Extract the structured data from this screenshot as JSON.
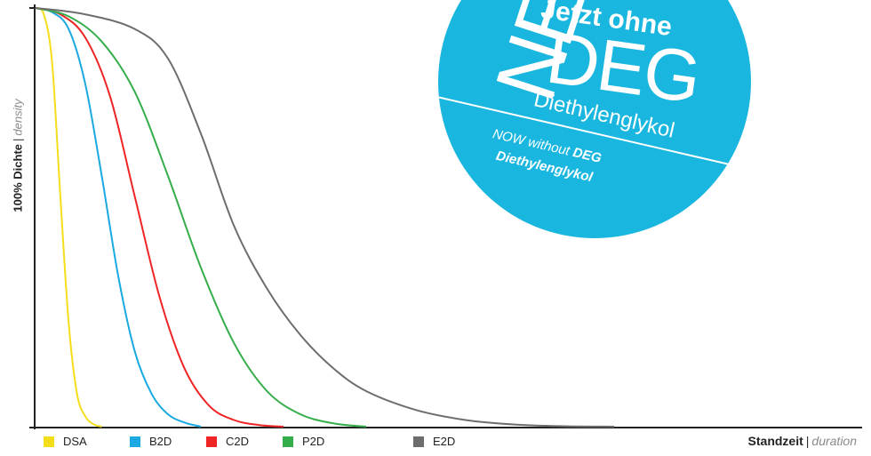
{
  "chart_data": {
    "type": "line",
    "title": "",
    "ylabel_main": "100% Dichte",
    "ylabel_separator": "|",
    "ylabel_secondary": "density",
    "xlabel_main": "Standzeit",
    "xlabel_separator": "|",
    "xlabel_secondary": "duration",
    "x_range": [
      0,
      100
    ],
    "y_range": [
      0,
      1
    ],
    "grid": false,
    "legend_position": "bottom",
    "series": [
      {
        "name": "DSA",
        "color": "#f4dd1a",
        "x": [
          0,
          1,
          2,
          3,
          4,
          5,
          6,
          7,
          8
        ],
        "y": [
          1.0,
          0.985,
          0.87,
          0.55,
          0.25,
          0.08,
          0.025,
          0.006,
          0.0
        ]
      },
      {
        "name": "B2D",
        "color": "#1ba9e1",
        "x": [
          0,
          2,
          4,
          6,
          8,
          10,
          12,
          14,
          16,
          18,
          20
        ],
        "y": [
          1.0,
          0.99,
          0.95,
          0.82,
          0.6,
          0.36,
          0.18,
          0.08,
          0.03,
          0.01,
          0.0
        ]
      },
      {
        "name": "C2D",
        "color": "#ee2524",
        "x": [
          0,
          3,
          6,
          9,
          12,
          15,
          18,
          21,
          24,
          27,
          30
        ],
        "y": [
          1.0,
          0.985,
          0.93,
          0.79,
          0.55,
          0.31,
          0.14,
          0.05,
          0.016,
          0.004,
          0.0
        ]
      },
      {
        "name": "P2D",
        "color": "#35ad4b",
        "x": [
          0,
          4,
          8,
          12,
          16,
          20,
          24,
          28,
          32,
          36,
          40
        ],
        "y": [
          1.0,
          0.98,
          0.92,
          0.8,
          0.6,
          0.38,
          0.2,
          0.085,
          0.03,
          0.008,
          0.0
        ]
      },
      {
        "name": "E2D",
        "color": "#6d6d6d",
        "x": [
          0,
          6,
          12,
          16,
          20,
          24,
          28,
          32,
          36,
          40,
          46,
          52,
          58,
          64,
          70
        ],
        "y": [
          1.0,
          0.985,
          0.95,
          0.88,
          0.7,
          0.48,
          0.33,
          0.22,
          0.14,
          0.085,
          0.04,
          0.016,
          0.005,
          0.001,
          0.0
        ]
      }
    ]
  },
  "badge": {
    "neu": "NEU",
    "line1": "Jetzt ohne",
    "line2": "DEG",
    "line3": "Diethylenglykol",
    "line4_prefix": "NOW without",
    "line4_strong": "DEG",
    "line5": "Diethylenglykol",
    "color": "#19b6df"
  }
}
